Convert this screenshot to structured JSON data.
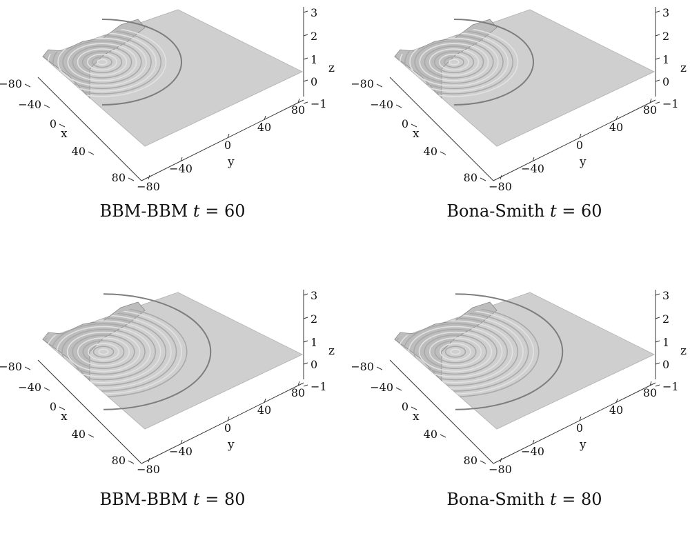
{
  "axes": {
    "x_label": "x",
    "y_label": "y",
    "z_label": "z",
    "x_ticks": [
      "−80",
      "−40",
      "0",
      "40",
      "80"
    ],
    "y_ticks": [
      "−80",
      "−40",
      "0",
      "40",
      "80"
    ],
    "z_ticks": [
      "−1",
      "0",
      "1",
      "2",
      "3"
    ]
  },
  "panels": [
    {
      "model": "BBM-BBM",
      "t_symbol": "t",
      "eq": "=",
      "t_value": "60"
    },
    {
      "model": "Bona-Smith",
      "t_symbol": "t",
      "eq": "=",
      "t_value": "60"
    },
    {
      "model": "BBM-BBM",
      "t_symbol": "t",
      "eq": "=",
      "t_value": "80"
    },
    {
      "model": "Bona-Smith",
      "t_symbol": "t",
      "eq": "=",
      "t_value": "80"
    }
  ],
  "colors": {
    "surface": "#cfcfcf",
    "surface_dark": "#9a9a9a",
    "axis": "#333333"
  }
}
